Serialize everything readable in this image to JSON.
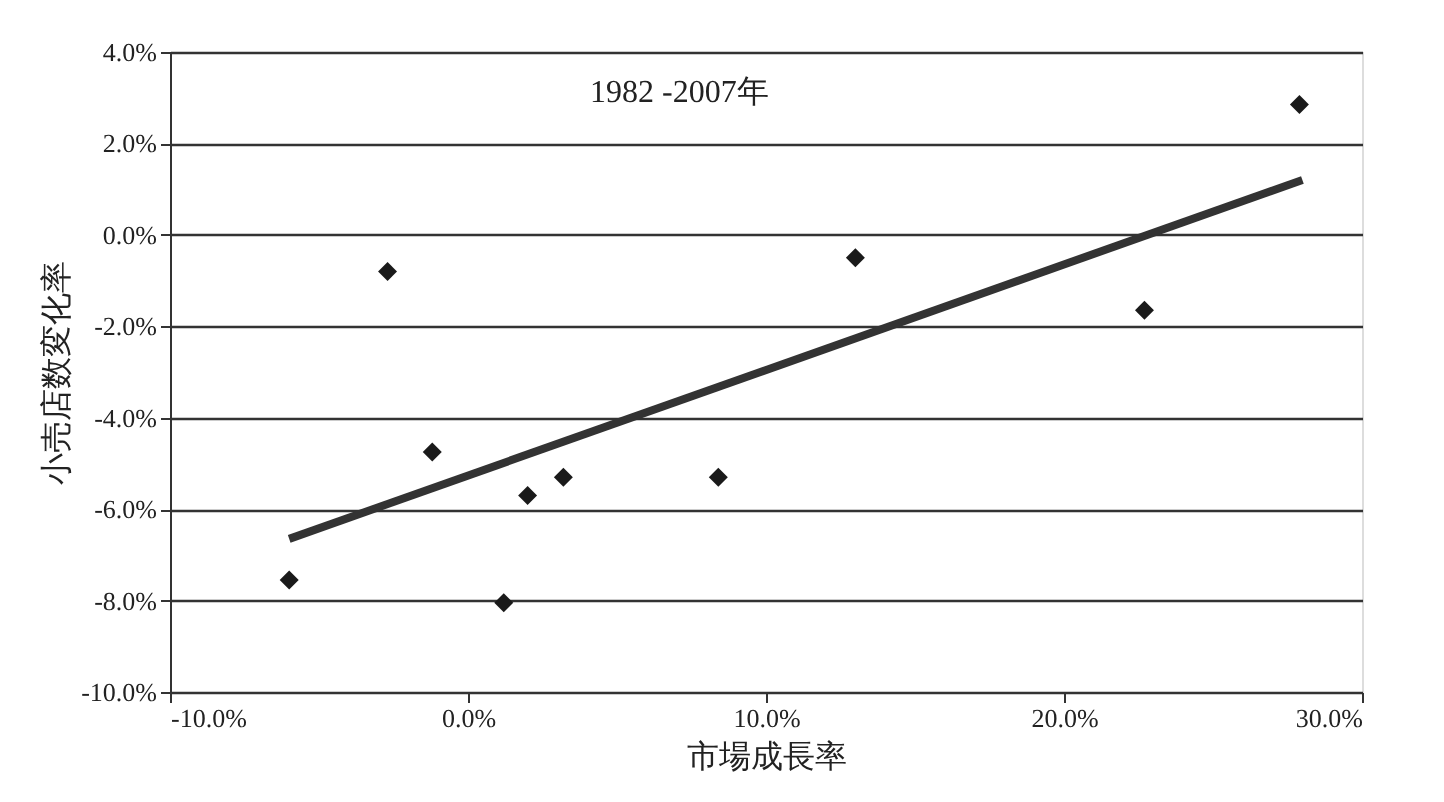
{
  "chart_data": {
    "type": "scatter",
    "xlabel": "市場成長率",
    "ylabel": "小売店数変化率",
    "annotations": [
      "1982 -2007年"
    ],
    "series": [
      {
        "color": "#1a1a1a",
        "marker": "diamond",
        "x": [
          -2.7,
          -1.2,
          -6.0,
          1.2,
          2.0,
          3.2,
          8.4,
          13.0,
          22.7,
          27.9
        ],
        "values": [
          -0.8,
          -4.75,
          -7.55,
          -8.05,
          -5.7,
          -5.3,
          -5.3,
          -0.5,
          -1.65,
          2.85
        ]
      },
      {
        "type": "line",
        "color": "#333333",
        "x": [
          -6.0,
          28.0
        ],
        "values": [
          -6.65,
          1.2
        ]
      }
    ],
    "xlim": [
      -10,
      30
    ],
    "xticks": [
      {
        "value": -10,
        "label": "-10.0%"
      },
      {
        "value": 0,
        "label": "0.0%"
      },
      {
        "value": 10,
        "label": "10.0%"
      },
      {
        "value": 20,
        "label": "20.0%"
      },
      {
        "value": 30,
        "label": "30.0%"
      }
    ],
    "ylim": [
      -10,
      4
    ],
    "yticks": [
      {
        "value": -10,
        "label": "-10.0%"
      },
      {
        "value": -8,
        "label": "-8.0%"
      },
      {
        "value": -6,
        "label": "-6.0%"
      },
      {
        "value": -4,
        "label": "-4.0%"
      },
      {
        "value": -2,
        "label": "-2.0%"
      },
      {
        "value": 0,
        "label": "0.0%"
      },
      {
        "value": 2,
        "label": "2.0%"
      },
      {
        "value": 4,
        "label": "4.0%"
      }
    ],
    "grid": "y"
  }
}
